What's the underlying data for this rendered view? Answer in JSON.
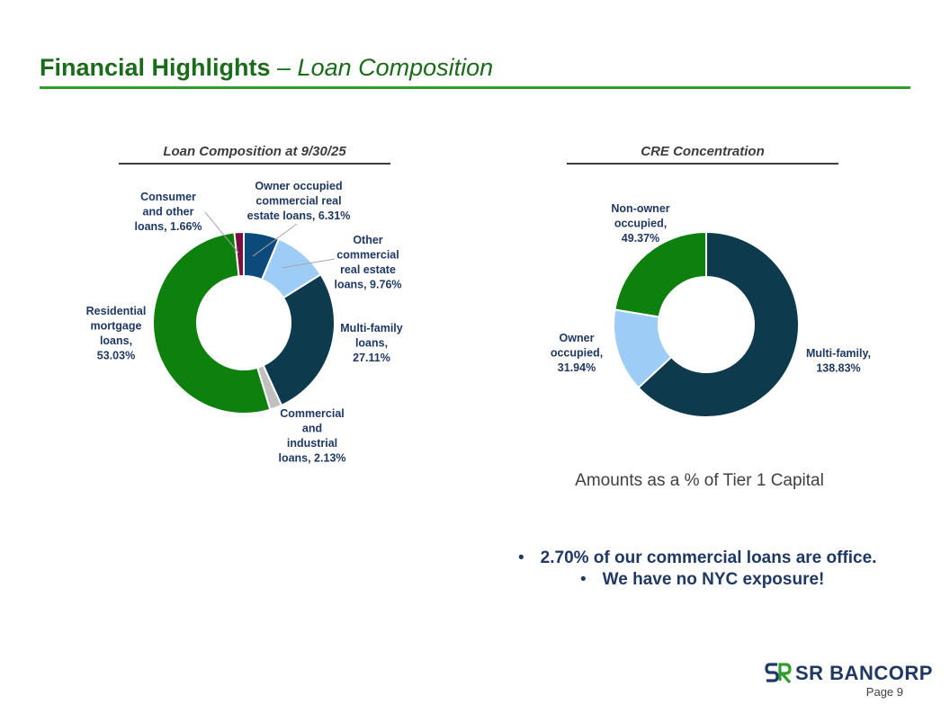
{
  "header": {
    "title_main": "Financial Highlights",
    "title_sub": "– Loan Composition"
  },
  "charts": {
    "left_title": "Loan Composition at 9/30/25",
    "right_title": "CRE Concentration",
    "right_caption": "Amounts as a % of Tier 1 Capital"
  },
  "chart_data": [
    {
      "type": "pie",
      "donut": true,
      "title": "Loan Composition at 9/30/25",
      "slices": [
        {
          "name": "Owner occupied commercial real estate loans",
          "label_lines": [
            "Owner occupied",
            "commercial real",
            "estate loans, 6.31%"
          ],
          "value": 6.31,
          "color": "#0d4a7c"
        },
        {
          "name": "Other commercial real estate loans",
          "label_lines": [
            "Other",
            "commercial",
            "real estate",
            "loans, 9.76%"
          ],
          "value": 9.76,
          "color": "#9dccf7"
        },
        {
          "name": "Multi-family loans",
          "label_lines": [
            "Multi-family",
            "loans,",
            "27.11%"
          ],
          "value": 27.11,
          "color": "#0e3a4d"
        },
        {
          "name": "Commercial and industrial loans",
          "label_lines": [
            "Commercial",
            "and",
            "industrial",
            "loans, 2.13%"
          ],
          "value": 2.13,
          "color": "#c0c0c0"
        },
        {
          "name": "Residential mortgage loans",
          "label_lines": [
            "Residential",
            "mortgage",
            "loans,",
            "53.03%"
          ],
          "value": 53.03,
          "color": "#0d800d"
        },
        {
          "name": "Consumer and other loans",
          "label_lines": [
            "Consumer",
            "and other",
            "loans, 1.66%"
          ],
          "value": 1.66,
          "color": "#7a1040"
        }
      ]
    },
    {
      "type": "pie",
      "donut": true,
      "title": "CRE Concentration",
      "slices": [
        {
          "name": "Multi-family",
          "label_lines": [
            "Multi-family,",
            "138.83%"
          ],
          "value": 138.83,
          "color": "#0e3a4d"
        },
        {
          "name": "Owner occupied",
          "label_lines": [
            "Owner",
            "occupied,",
            "31.94%"
          ],
          "value": 31.94,
          "color": "#9dccf7"
        },
        {
          "name": "Non-owner occupied",
          "label_lines": [
            "Non-owner",
            "occupied,",
            "49.37%"
          ],
          "value": 49.37,
          "color": "#0d800d"
        }
      ]
    }
  ],
  "bullets": [
    "2.70% of our commercial loans are office.",
    "We have no NYC exposure!"
  ],
  "bullet_marker": "•",
  "footer": {
    "logo_text": "SR BANCORP",
    "page": "Page 9"
  }
}
